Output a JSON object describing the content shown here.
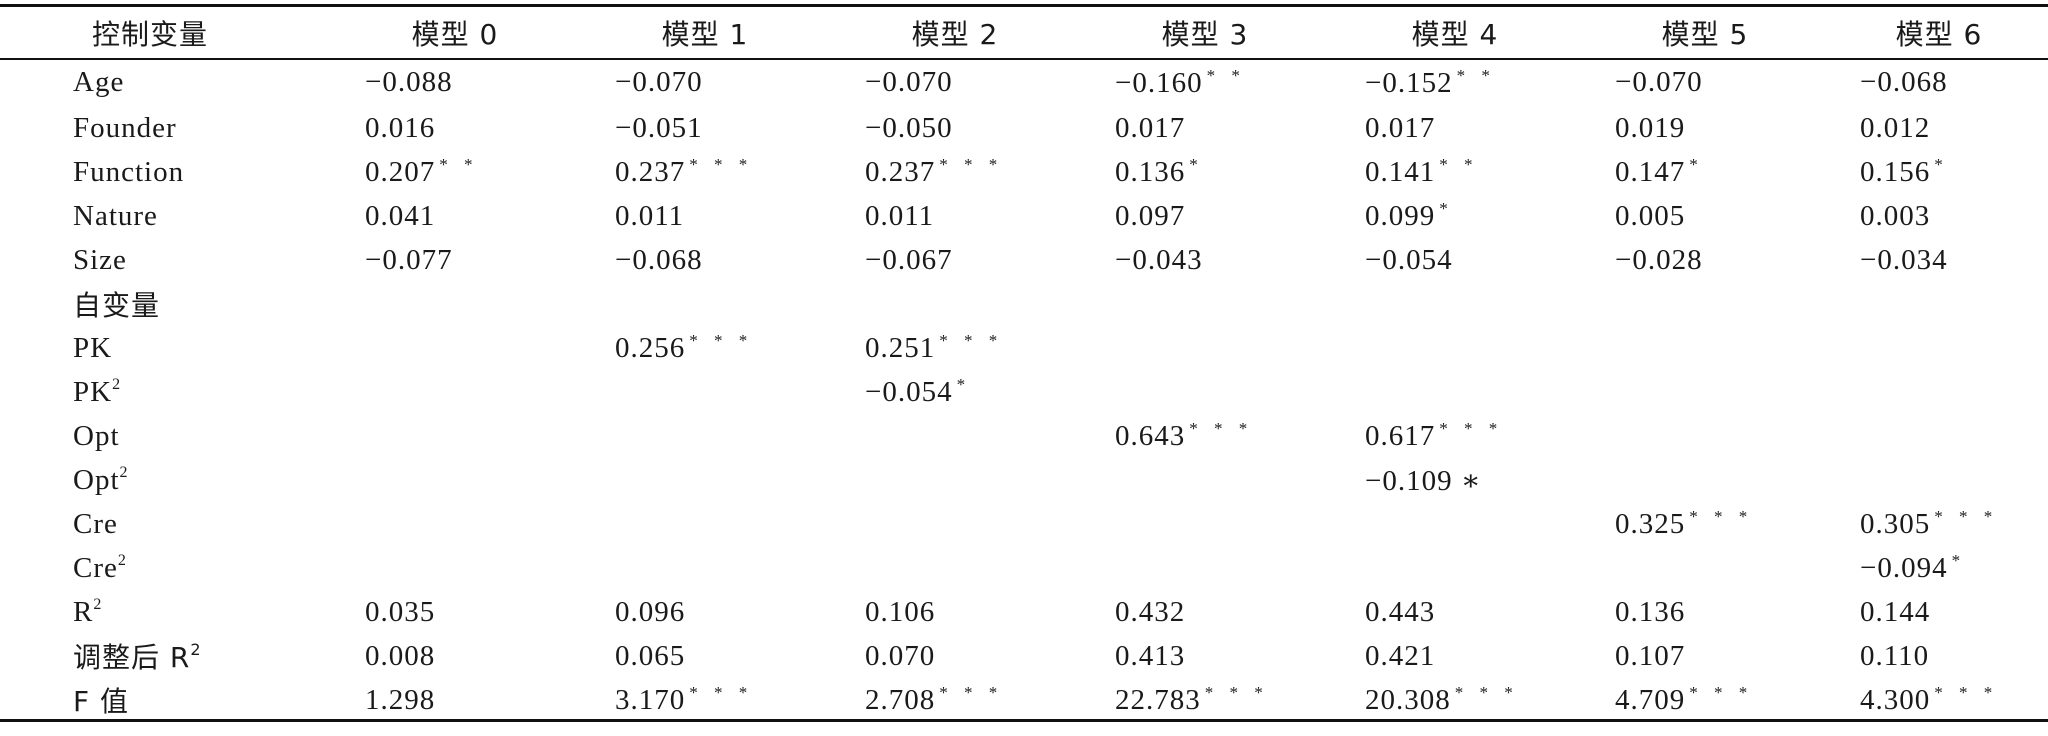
{
  "table": {
    "headers": [
      "控制变量",
      "模型 0",
      "模型 1",
      "模型 2",
      "模型 3",
      "模型 4",
      "模型 5",
      "模型 6"
    ],
    "rows": [
      {
        "label": "Age",
        "cells": [
          {
            "v": "−0.088",
            "s": ""
          },
          {
            "v": "−0.070",
            "s": ""
          },
          {
            "v": "−0.070",
            "s": ""
          },
          {
            "v": "−0.160",
            "s": "* *"
          },
          {
            "v": "−0.152",
            "s": "* *"
          },
          {
            "v": "−0.070",
            "s": ""
          },
          {
            "v": "−0.068",
            "s": ""
          }
        ]
      },
      {
        "label": "Founder",
        "cells": [
          {
            "v": "0.016",
            "s": ""
          },
          {
            "v": "−0.051",
            "s": ""
          },
          {
            "v": "−0.050",
            "s": ""
          },
          {
            "v": "0.017",
            "s": ""
          },
          {
            "v": "0.017",
            "s": ""
          },
          {
            "v": "0.019",
            "s": ""
          },
          {
            "v": "0.012",
            "s": ""
          }
        ]
      },
      {
        "label": "Function",
        "cells": [
          {
            "v": "0.207",
            "s": "* *"
          },
          {
            "v": "0.237",
            "s": "* * *"
          },
          {
            "v": "0.237",
            "s": "* * *"
          },
          {
            "v": "0.136",
            "s": "*"
          },
          {
            "v": "0.141",
            "s": "* *"
          },
          {
            "v": "0.147",
            "s": "*"
          },
          {
            "v": "0.156",
            "s": "*"
          }
        ]
      },
      {
        "label": "Nature",
        "cells": [
          {
            "v": "0.041",
            "s": ""
          },
          {
            "v": "0.011",
            "s": ""
          },
          {
            "v": "0.011",
            "s": ""
          },
          {
            "v": "0.097",
            "s": ""
          },
          {
            "v": "0.099",
            "s": "*"
          },
          {
            "v": "0.005",
            "s": ""
          },
          {
            "v": "0.003",
            "s": ""
          }
        ]
      },
      {
        "label": "Size",
        "cells": [
          {
            "v": "−0.077",
            "s": ""
          },
          {
            "v": "−0.068",
            "s": ""
          },
          {
            "v": "−0.067",
            "s": ""
          },
          {
            "v": "−0.043",
            "s": ""
          },
          {
            "v": "−0.054",
            "s": ""
          },
          {
            "v": "−0.028",
            "s": ""
          },
          {
            "v": "−0.034",
            "s": ""
          }
        ]
      },
      {
        "label": "自变量",
        "cjk": true,
        "cells": [
          {
            "v": "",
            "s": ""
          },
          {
            "v": "",
            "s": ""
          },
          {
            "v": "",
            "s": ""
          },
          {
            "v": "",
            "s": ""
          },
          {
            "v": "",
            "s": ""
          },
          {
            "v": "",
            "s": ""
          },
          {
            "v": "",
            "s": ""
          }
        ]
      },
      {
        "label": "PK",
        "cells": [
          {
            "v": "",
            "s": ""
          },
          {
            "v": "0.256",
            "s": "* * *"
          },
          {
            "v": "0.251",
            "s": "* * *"
          },
          {
            "v": "",
            "s": ""
          },
          {
            "v": "",
            "s": ""
          },
          {
            "v": "",
            "s": ""
          },
          {
            "v": "",
            "s": ""
          }
        ]
      },
      {
        "label": "PK",
        "sup": "2",
        "cells": [
          {
            "v": "",
            "s": ""
          },
          {
            "v": "",
            "s": ""
          },
          {
            "v": "−0.054",
            "s": "*"
          },
          {
            "v": "",
            "s": ""
          },
          {
            "v": "",
            "s": ""
          },
          {
            "v": "",
            "s": ""
          },
          {
            "v": "",
            "s": ""
          }
        ]
      },
      {
        "label": "Opt",
        "cells": [
          {
            "v": "",
            "s": ""
          },
          {
            "v": "",
            "s": ""
          },
          {
            "v": "",
            "s": ""
          },
          {
            "v": "0.643",
            "s": "* * *"
          },
          {
            "v": "0.617",
            "s": "* * *"
          },
          {
            "v": "",
            "s": ""
          },
          {
            "v": "",
            "s": ""
          }
        ]
      },
      {
        "label": "Opt",
        "sup": "2",
        "cells": [
          {
            "v": "",
            "s": ""
          },
          {
            "v": "",
            "s": ""
          },
          {
            "v": "",
            "s": ""
          },
          {
            "v": "",
            "s": ""
          },
          {
            "v": "−0.109 ∗",
            "s": ""
          },
          {
            "v": "",
            "s": ""
          },
          {
            "v": "",
            "s": ""
          }
        ]
      },
      {
        "label": "Cre",
        "cells": [
          {
            "v": "",
            "s": ""
          },
          {
            "v": "",
            "s": ""
          },
          {
            "v": "",
            "s": ""
          },
          {
            "v": "",
            "s": ""
          },
          {
            "v": "",
            "s": ""
          },
          {
            "v": "0.325",
            "s": "* * *"
          },
          {
            "v": "0.305",
            "s": "* * *"
          }
        ]
      },
      {
        "label": "Cre",
        "sup": "2",
        "cells": [
          {
            "v": "",
            "s": ""
          },
          {
            "v": "",
            "s": ""
          },
          {
            "v": "",
            "s": ""
          },
          {
            "v": "",
            "s": ""
          },
          {
            "v": "",
            "s": ""
          },
          {
            "v": "",
            "s": ""
          },
          {
            "v": "−0.094",
            "s": "*"
          }
        ]
      },
      {
        "label": "R",
        "sup": "2",
        "cells": [
          {
            "v": "0.035",
            "s": ""
          },
          {
            "v": "0.096",
            "s": ""
          },
          {
            "v": "0.106",
            "s": ""
          },
          {
            "v": "0.432",
            "s": ""
          },
          {
            "v": "0.443",
            "s": ""
          },
          {
            "v": "0.136",
            "s": ""
          },
          {
            "v": "0.144",
            "s": ""
          }
        ]
      },
      {
        "label": "调整后 R",
        "sup": "2",
        "cjk": true,
        "cells": [
          {
            "v": "0.008",
            "s": ""
          },
          {
            "v": "0.065",
            "s": ""
          },
          {
            "v": "0.070",
            "s": ""
          },
          {
            "v": "0.413",
            "s": ""
          },
          {
            "v": "0.421",
            "s": ""
          },
          {
            "v": "0.107",
            "s": ""
          },
          {
            "v": "0.110",
            "s": ""
          }
        ]
      },
      {
        "label": "F 值",
        "cjk": true,
        "cells": [
          {
            "v": "1.298",
            "s": ""
          },
          {
            "v": "3.170",
            "s": "* * *"
          },
          {
            "v": "2.708",
            "s": "* * *"
          },
          {
            "v": "22.783",
            "s": "* * *"
          },
          {
            "v": "20.308",
            "s": "* * *"
          },
          {
            "v": "4.709",
            "s": "* * *"
          },
          {
            "v": "4.300",
            "s": "* * *"
          }
        ]
      }
    ]
  }
}
